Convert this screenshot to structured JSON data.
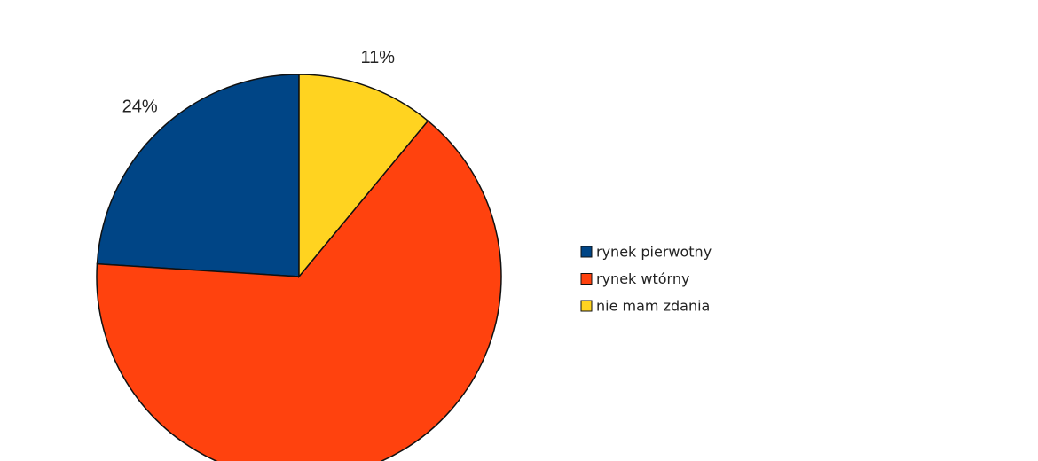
{
  "chart_data": {
    "type": "pie",
    "categories": [
      "rynek pierwotny",
      "rynek wtórny",
      "nie mam zdania"
    ],
    "values": [
      24,
      65,
      11
    ],
    "value_labels": [
      "24%",
      null,
      "11%"
    ],
    "colors": [
      "#004586",
      "#ff420e",
      "#ffd320"
    ],
    "legend": "right"
  }
}
